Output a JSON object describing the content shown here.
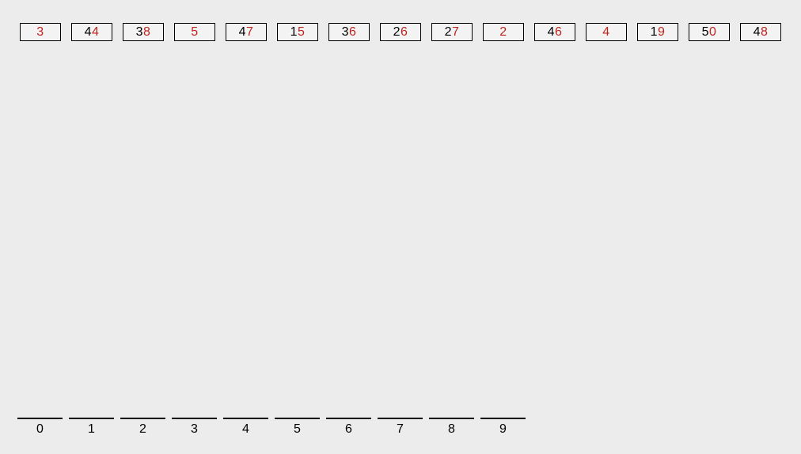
{
  "canvas": {
    "description": "Radix sort (LSD) visualization: source array with ones digit highlighted, empty digit buckets 0-9 below",
    "background": "#ececec"
  },
  "array": {
    "items": [
      {
        "value": "3",
        "prefix": "",
        "highlight_digit": "3"
      },
      {
        "value": "44",
        "prefix": "4",
        "highlight_digit": "4"
      },
      {
        "value": "38",
        "prefix": "3",
        "highlight_digit": "8"
      },
      {
        "value": "5",
        "prefix": "",
        "highlight_digit": "5"
      },
      {
        "value": "47",
        "prefix": "4",
        "highlight_digit": "7"
      },
      {
        "value": "15",
        "prefix": "1",
        "highlight_digit": "5"
      },
      {
        "value": "36",
        "prefix": "3",
        "highlight_digit": "6"
      },
      {
        "value": "26",
        "prefix": "2",
        "highlight_digit": "6"
      },
      {
        "value": "27",
        "prefix": "2",
        "highlight_digit": "7"
      },
      {
        "value": "2",
        "prefix": "",
        "highlight_digit": "2"
      },
      {
        "value": "46",
        "prefix": "4",
        "highlight_digit": "6"
      },
      {
        "value": "4",
        "prefix": "",
        "highlight_digit": "4"
      },
      {
        "value": "19",
        "prefix": "1",
        "highlight_digit": "9"
      },
      {
        "value": "50",
        "prefix": "5",
        "highlight_digit": "0"
      },
      {
        "value": "48",
        "prefix": "4",
        "highlight_digit": "8"
      }
    ]
  },
  "buckets": {
    "labels": [
      "0",
      "1",
      "2",
      "3",
      "4",
      "5",
      "6",
      "7",
      "8",
      "9"
    ]
  },
  "colors": {
    "background": "#ececec",
    "box_fill": "#f3f3f3",
    "box_border": "#000000",
    "digit_default": "#000000",
    "digit_highlight": "#be231e",
    "bucket_line": "#000000",
    "bucket_label": "#000000"
  }
}
